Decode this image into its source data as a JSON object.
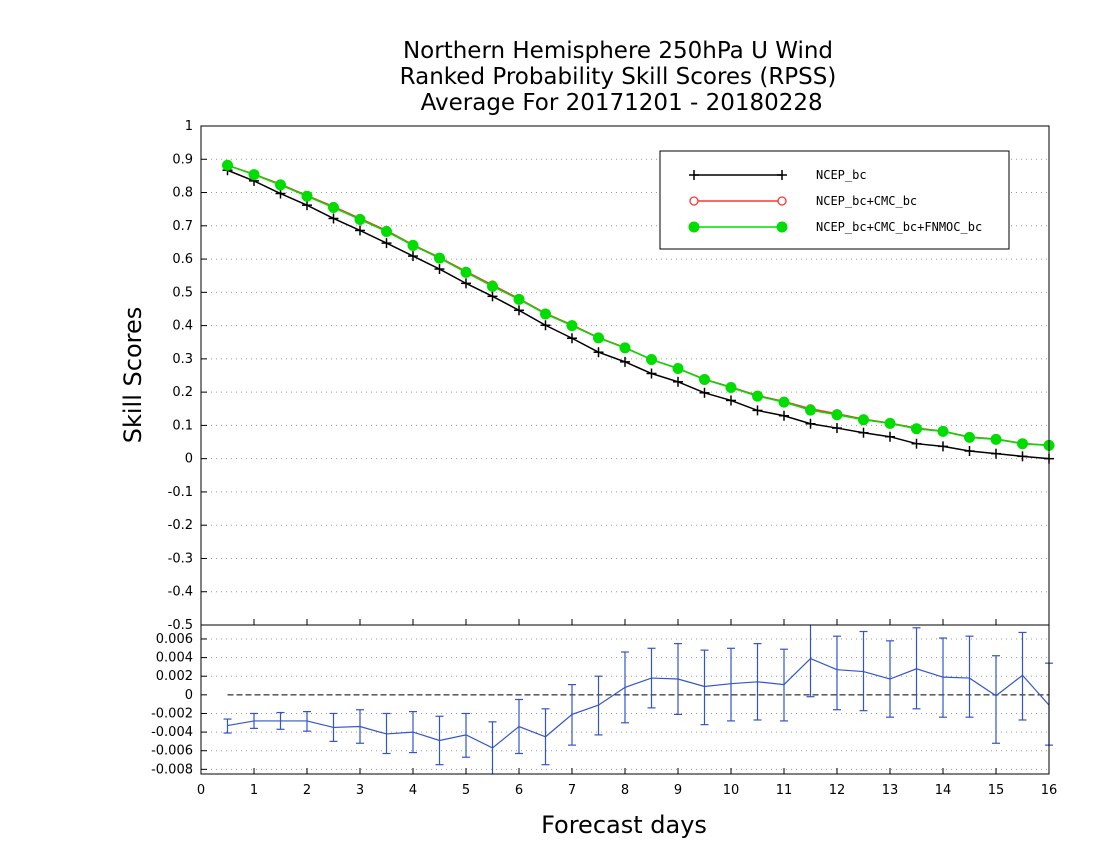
{
  "chart_data": [
    {
      "type": "line",
      "title": [
        "Northern Hemisphere 250hPa U Wind",
        "Ranked Probability Skill Scores (RPSS)",
        " Average For 20171201 - 20180228"
      ],
      "xlabel": "Forecast days",
      "ylabel": "Skill Scores",
      "xlim": [
        0,
        16
      ],
      "ylim": [
        -0.5,
        1
      ],
      "xticks": [
        0,
        1,
        2,
        3,
        4,
        5,
        6,
        7,
        8,
        9,
        10,
        11,
        12,
        13,
        14,
        15,
        16
      ],
      "xtick_labels": [
        "0",
        "1",
        "2",
        "3",
        "4",
        "5",
        "6",
        "7",
        "8",
        "9",
        "10",
        "11",
        "12",
        "13",
        "14",
        "15",
        "16"
      ],
      "yticks": [
        1,
        0.9,
        0.8,
        0.7,
        0.6,
        0.5,
        0.4,
        0.3,
        0.2,
        0.1,
        0,
        -0.1,
        -0.2,
        -0.3,
        -0.4,
        -0.5
      ],
      "ytick_labels": [
        "1",
        "0.9",
        "0.8",
        "0.7",
        "0.6",
        "0.5",
        "0.4",
        "0.3",
        "0.2",
        "0.1",
        "0",
        "-0.1",
        "-0.2",
        "-0.3",
        "-0.4",
        "-0.5"
      ],
      "grid": "dotted",
      "legend_position": "top-right",
      "x": [
        0.5,
        1,
        1.5,
        2,
        2.5,
        3,
        3.5,
        4,
        4.5,
        5,
        5.5,
        6,
        6.5,
        7,
        7.5,
        8,
        8.5,
        9,
        9.5,
        10,
        10.5,
        11,
        11.5,
        12,
        12.5,
        13,
        13.5,
        14,
        14.5,
        15,
        15.5,
        16
      ],
      "series": [
        {
          "name": "NCEP_bc",
          "marker": "plus",
          "color": "#000000",
          "values": [
            0.867,
            0.835,
            0.797,
            0.762,
            0.722,
            0.686,
            0.648,
            0.609,
            0.57,
            0.527,
            0.488,
            0.446,
            0.401,
            0.362,
            0.32,
            0.291,
            0.256,
            0.231,
            0.198,
            0.175,
            0.145,
            0.129,
            0.105,
            0.092,
            0.078,
            0.066,
            0.045,
            0.037,
            0.023,
            0.015,
            0.007,
            0.0
          ]
        },
        {
          "name": "NCEP_bc+CMC_bc",
          "marker": "open-circle",
          "color": "#ff3333",
          "values": [
            0.882,
            0.855,
            0.825,
            0.791,
            0.758,
            0.722,
            0.686,
            0.643,
            0.605,
            0.563,
            0.522,
            0.481,
            0.437,
            0.402,
            0.364,
            0.334,
            0.298,
            0.271,
            0.239,
            0.215,
            0.19,
            0.172,
            0.15,
            0.135,
            0.119,
            0.107,
            0.092,
            0.083,
            0.065,
            0.059,
            0.046,
            0.04
          ]
        },
        {
          "name": "NCEP_bc+CMC_bc+FNMOC_bc",
          "marker": "filled-circle",
          "color": "#00dd00",
          "values": [
            0.882,
            0.854,
            0.823,
            0.789,
            0.755,
            0.719,
            0.683,
            0.641,
            0.603,
            0.56,
            0.518,
            0.479,
            0.435,
            0.4,
            0.363,
            0.333,
            0.298,
            0.271,
            0.238,
            0.214,
            0.188,
            0.17,
            0.146,
            0.132,
            0.117,
            0.106,
            0.09,
            0.082,
            0.064,
            0.058,
            0.045,
            0.04
          ]
        }
      ]
    },
    {
      "type": "line",
      "xlim": [
        0,
        16
      ],
      "ylim": [
        -0.0085,
        0.0075
      ],
      "yticks": [
        0.006,
        0.004,
        0.002,
        0,
        -0.002,
        -0.004,
        -0.006,
        -0.008
      ],
      "ytick_labels": [
        "0.006",
        "0.004",
        "0.002",
        "0",
        "-0.002",
        "-0.004",
        "-0.006",
        "-0.008"
      ],
      "grid": "dotted",
      "zero_line": "dashed",
      "error_bars": true,
      "color": "#3355cc",
      "x": [
        0.5,
        1,
        1.5,
        2,
        2.5,
        3,
        3.5,
        4,
        4.5,
        5,
        5.5,
        6,
        6.5,
        7,
        7.5,
        8,
        8.5,
        9,
        9.5,
        10,
        10.5,
        11,
        11.5,
        12,
        12.5,
        13,
        13.5,
        14,
        14.5,
        15,
        15.5,
        16
      ],
      "values": [
        -0.0033,
        -0.0028,
        -0.0028,
        -0.0028,
        -0.0035,
        -0.0034,
        -0.0042,
        -0.004,
        -0.0049,
        -0.0043,
        -0.0057,
        -0.0034,
        -0.0045,
        -0.0021,
        -0.0011,
        0.0008,
        0.0018,
        0.0017,
        0.0009,
        0.0012,
        0.0014,
        0.0011,
        0.0039,
        0.0027,
        0.0025,
        0.0017,
        0.0028,
        0.0019,
        0.0018,
        -0.0001,
        0.0021,
        -0.0011
      ],
      "error_low": [
        -0.0041,
        -0.0036,
        -0.0037,
        -0.0039,
        -0.005,
        -0.0052,
        -0.0063,
        -0.0062,
        -0.0075,
        -0.0067,
        -0.0085,
        -0.0063,
        -0.0075,
        -0.0054,
        -0.0043,
        -0.003,
        -0.0014,
        -0.0021,
        -0.0032,
        -0.0028,
        -0.0027,
        -0.0028,
        -0.0002,
        -0.0016,
        -0.0017,
        -0.0024,
        -0.0015,
        -0.0024,
        -0.0024,
        -0.0052,
        -0.0027,
        -0.0054
      ],
      "error_high": [
        -0.0026,
        -0.002,
        -0.0019,
        -0.0018,
        -0.002,
        -0.0016,
        -0.002,
        -0.0018,
        -0.0023,
        -0.002,
        -0.0029,
        -0.0005,
        -0.0015,
        0.0011,
        0.002,
        0.0046,
        0.005,
        0.0055,
        0.0048,
        0.005,
        0.0055,
        0.0049,
        0.008,
        0.0063,
        0.0068,
        0.0058,
        0.0072,
        0.0061,
        0.0063,
        0.0042,
        0.0067,
        0.0034
      ]
    }
  ]
}
